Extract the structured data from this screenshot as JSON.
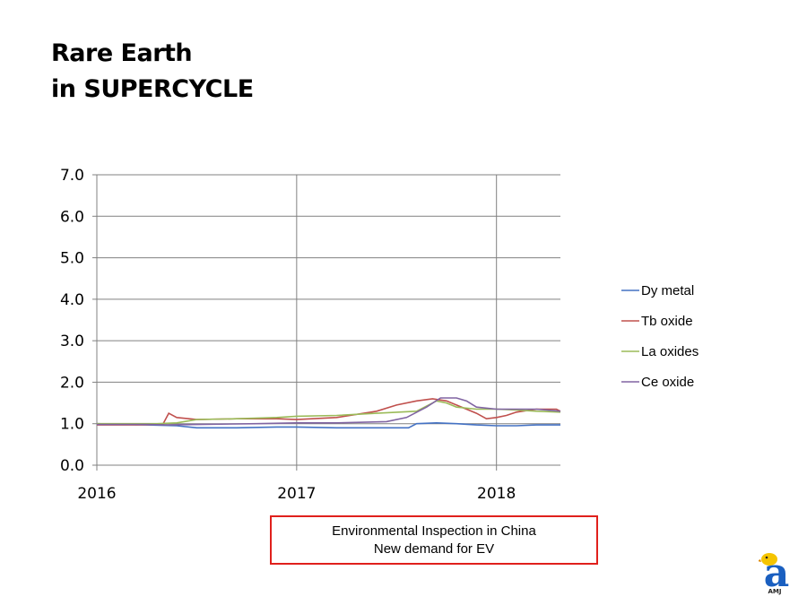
{
  "title": {
    "line1": "Rare Earth",
    "line2": "in SUPERCYCLE"
  },
  "annotation": {
    "line1": "Environmental Inspection in China",
    "line2": "New demand for EV"
  },
  "logo": {
    "letter": "a",
    "text": "AMJ",
    "color": "#1a5fc0",
    "bird_color": "#f5c400"
  },
  "chart_data": {
    "type": "line",
    "title": "",
    "xlabel": "",
    "ylabel": "",
    "ylim": [
      0,
      7
    ],
    "yticks": [
      "0.0",
      "1.0",
      "2.0",
      "3.0",
      "4.0",
      "5.0",
      "6.0",
      "7.0"
    ],
    "xlim": [
      2016,
      2018.32
    ],
    "xticks": [
      {
        "value": 2016,
        "label": "2016"
      },
      {
        "value": 2017,
        "label": "2017"
      },
      {
        "value": 2018,
        "label": "2018"
      }
    ],
    "grid": "horizontal and vertical",
    "legend_position": "right",
    "series": [
      {
        "name": "Dy metal",
        "color": "#4472c4",
        "points": [
          [
            2016.0,
            1.0
          ],
          [
            2016.25,
            0.97
          ],
          [
            2016.4,
            0.95
          ],
          [
            2016.5,
            0.9
          ],
          [
            2016.7,
            0.9
          ],
          [
            2016.9,
            0.92
          ],
          [
            2017.0,
            0.92
          ],
          [
            2017.2,
            0.9
          ],
          [
            2017.4,
            0.9
          ],
          [
            2017.56,
            0.9
          ],
          [
            2017.6,
            1.0
          ],
          [
            2017.7,
            1.02
          ],
          [
            2017.8,
            1.0
          ],
          [
            2017.9,
            0.97
          ],
          [
            2018.0,
            0.95
          ],
          [
            2018.1,
            0.95
          ],
          [
            2018.2,
            0.97
          ],
          [
            2018.32,
            0.97
          ]
        ]
      },
      {
        "name": "Tb oxide",
        "color": "#c0504d",
        "points": [
          [
            2016.0,
            0.97
          ],
          [
            2016.2,
            0.97
          ],
          [
            2016.33,
            0.98
          ],
          [
            2016.36,
            1.25
          ],
          [
            2016.4,
            1.15
          ],
          [
            2016.5,
            1.1
          ],
          [
            2016.7,
            1.12
          ],
          [
            2016.9,
            1.12
          ],
          [
            2017.0,
            1.1
          ],
          [
            2017.2,
            1.15
          ],
          [
            2017.4,
            1.3
          ],
          [
            2017.5,
            1.45
          ],
          [
            2017.6,
            1.55
          ],
          [
            2017.68,
            1.6
          ],
          [
            2017.75,
            1.55
          ],
          [
            2017.8,
            1.45
          ],
          [
            2017.9,
            1.25
          ],
          [
            2017.95,
            1.12
          ],
          [
            2018.0,
            1.15
          ],
          [
            2018.05,
            1.2
          ],
          [
            2018.1,
            1.28
          ],
          [
            2018.2,
            1.35
          ],
          [
            2018.3,
            1.35
          ],
          [
            2018.32,
            1.3
          ]
        ]
      },
      {
        "name": "La oxides",
        "color": "#9bbb59",
        "points": [
          [
            2016.0,
            1.0
          ],
          [
            2016.3,
            1.0
          ],
          [
            2016.4,
            1.02
          ],
          [
            2016.5,
            1.1
          ],
          [
            2016.7,
            1.12
          ],
          [
            2016.9,
            1.15
          ],
          [
            2017.0,
            1.18
          ],
          [
            2017.2,
            1.2
          ],
          [
            2017.4,
            1.25
          ],
          [
            2017.6,
            1.3
          ],
          [
            2017.7,
            1.55
          ],
          [
            2017.75,
            1.5
          ],
          [
            2017.8,
            1.4
          ],
          [
            2017.9,
            1.35
          ],
          [
            2018.0,
            1.35
          ],
          [
            2018.1,
            1.33
          ],
          [
            2018.2,
            1.3
          ],
          [
            2018.32,
            1.28
          ]
        ]
      },
      {
        "name": "Ce oxide",
        "color": "#8064a2",
        "points": [
          [
            2016.0,
            0.98
          ],
          [
            2016.25,
            0.98
          ],
          [
            2016.35,
            0.97
          ],
          [
            2016.5,
            0.98
          ],
          [
            2016.8,
            1.0
          ],
          [
            2017.0,
            1.02
          ],
          [
            2017.2,
            1.02
          ],
          [
            2017.45,
            1.05
          ],
          [
            2017.55,
            1.15
          ],
          [
            2017.65,
            1.4
          ],
          [
            2017.72,
            1.62
          ],
          [
            2017.8,
            1.62
          ],
          [
            2017.85,
            1.55
          ],
          [
            2017.9,
            1.4
          ],
          [
            2018.0,
            1.35
          ],
          [
            2018.1,
            1.35
          ],
          [
            2018.2,
            1.35
          ],
          [
            2018.32,
            1.3
          ]
        ]
      }
    ]
  }
}
